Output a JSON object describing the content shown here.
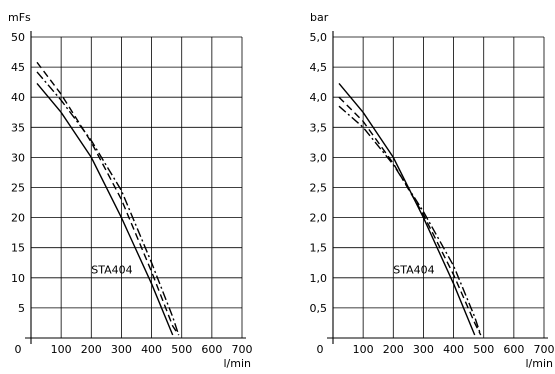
{
  "chart_data": [
    {
      "type": "line",
      "ylabel": "mFs",
      "xlabel": "l/min",
      "annotation": "STA404",
      "xlim": [
        0,
        700
      ],
      "ylim": [
        0,
        50
      ],
      "x_ticks": [
        "0",
        "100",
        "200",
        "300",
        "400",
        "500",
        "600",
        "700"
      ],
      "y_ticks": [
        "5",
        "10",
        "15",
        "20",
        "25",
        "30",
        "35",
        "40",
        "45",
        "50"
      ],
      "y_tick_values": [
        5,
        10,
        15,
        20,
        25,
        30,
        35,
        40,
        45,
        50
      ],
      "grid": true,
      "series": [
        {
          "style": "solid",
          "x": [
            20,
            100,
            200,
            300,
            400,
            470
          ],
          "y": [
            42.3,
            37.5,
            30,
            20,
            9,
            0.5
          ]
        },
        {
          "style": "dashed",
          "x": [
            20,
            100,
            200,
            300,
            400,
            470,
            490
          ],
          "y": [
            45.8,
            40.5,
            32.5,
            23,
            11,
            2,
            0.5
          ]
        },
        {
          "style": "dashdot",
          "x": [
            20,
            100,
            200,
            300,
            400,
            470,
            490
          ],
          "y": [
            44.2,
            39.5,
            32.8,
            24.5,
            12.5,
            3.5,
            0.5
          ]
        }
      ]
    },
    {
      "type": "line",
      "ylabel": "bar",
      "xlabel": "l/min",
      "annotation": "STA404",
      "xlim": [
        0,
        700
      ],
      "ylim": [
        0,
        5
      ],
      "x_ticks": [
        "0",
        "100",
        "200",
        "300",
        "400",
        "500",
        "600",
        "700"
      ],
      "y_ticks": [
        "0,5",
        "1,0",
        "1,5",
        "2,0",
        "2,5",
        "3,0",
        "3,5",
        "4,0",
        "4,5",
        "5,0"
      ],
      "y_tick_values": [
        0.5,
        1,
        1.5,
        2,
        2.5,
        3,
        3.5,
        4,
        4.5,
        5
      ],
      "grid": true,
      "series": [
        {
          "style": "solid",
          "x": [
            20,
            100,
            200,
            300,
            400,
            470
          ],
          "y": [
            4.23,
            3.75,
            3,
            2,
            0.9,
            0.05
          ]
        },
        {
          "style": "dashed",
          "x": [
            20,
            100,
            200,
            300,
            400,
            470,
            490
          ],
          "y": [
            4.0,
            3.6,
            2.9,
            2.05,
            1.05,
            0.25,
            0.05
          ]
        },
        {
          "style": "dashdot",
          "x": [
            20,
            100,
            200,
            300,
            400,
            470,
            490
          ],
          "y": [
            3.85,
            3.5,
            2.88,
            2.1,
            1.2,
            0.35,
            0.05
          ]
        }
      ]
    }
  ]
}
